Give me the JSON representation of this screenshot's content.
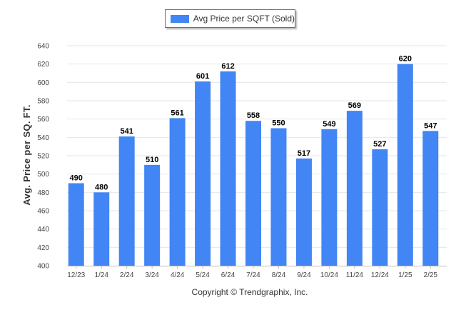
{
  "legend": {
    "label": "Avg Price per SQFT (Sold)",
    "color": "#4285f4"
  },
  "footer": {
    "copyright": "Copyright © Trendgraphix, Inc."
  },
  "chart_data": {
    "type": "bar",
    "categories": [
      "12/23",
      "1/24",
      "2/24",
      "3/24",
      "4/24",
      "5/24",
      "6/24",
      "7/24",
      "8/24",
      "9/24",
      "10/24",
      "11/24",
      "12/24",
      "1/25",
      "2/25"
    ],
    "series": [
      {
        "name": "Avg Price per SQFT (Sold)",
        "values": [
          490,
          480,
          541,
          510,
          561,
          601,
          612,
          558,
          550,
          517,
          549,
          569,
          527,
          620,
          547
        ]
      }
    ],
    "ylabel": "Avg. Price per SQ. FT.",
    "xlabel": "",
    "ylim": [
      400,
      640
    ],
    "yticks": [
      400,
      420,
      440,
      460,
      480,
      500,
      520,
      540,
      560,
      580,
      600,
      620,
      640
    ],
    "grid": true,
    "legend_position": "top-center",
    "bar_color": "#4285f4",
    "data_labels": true
  }
}
